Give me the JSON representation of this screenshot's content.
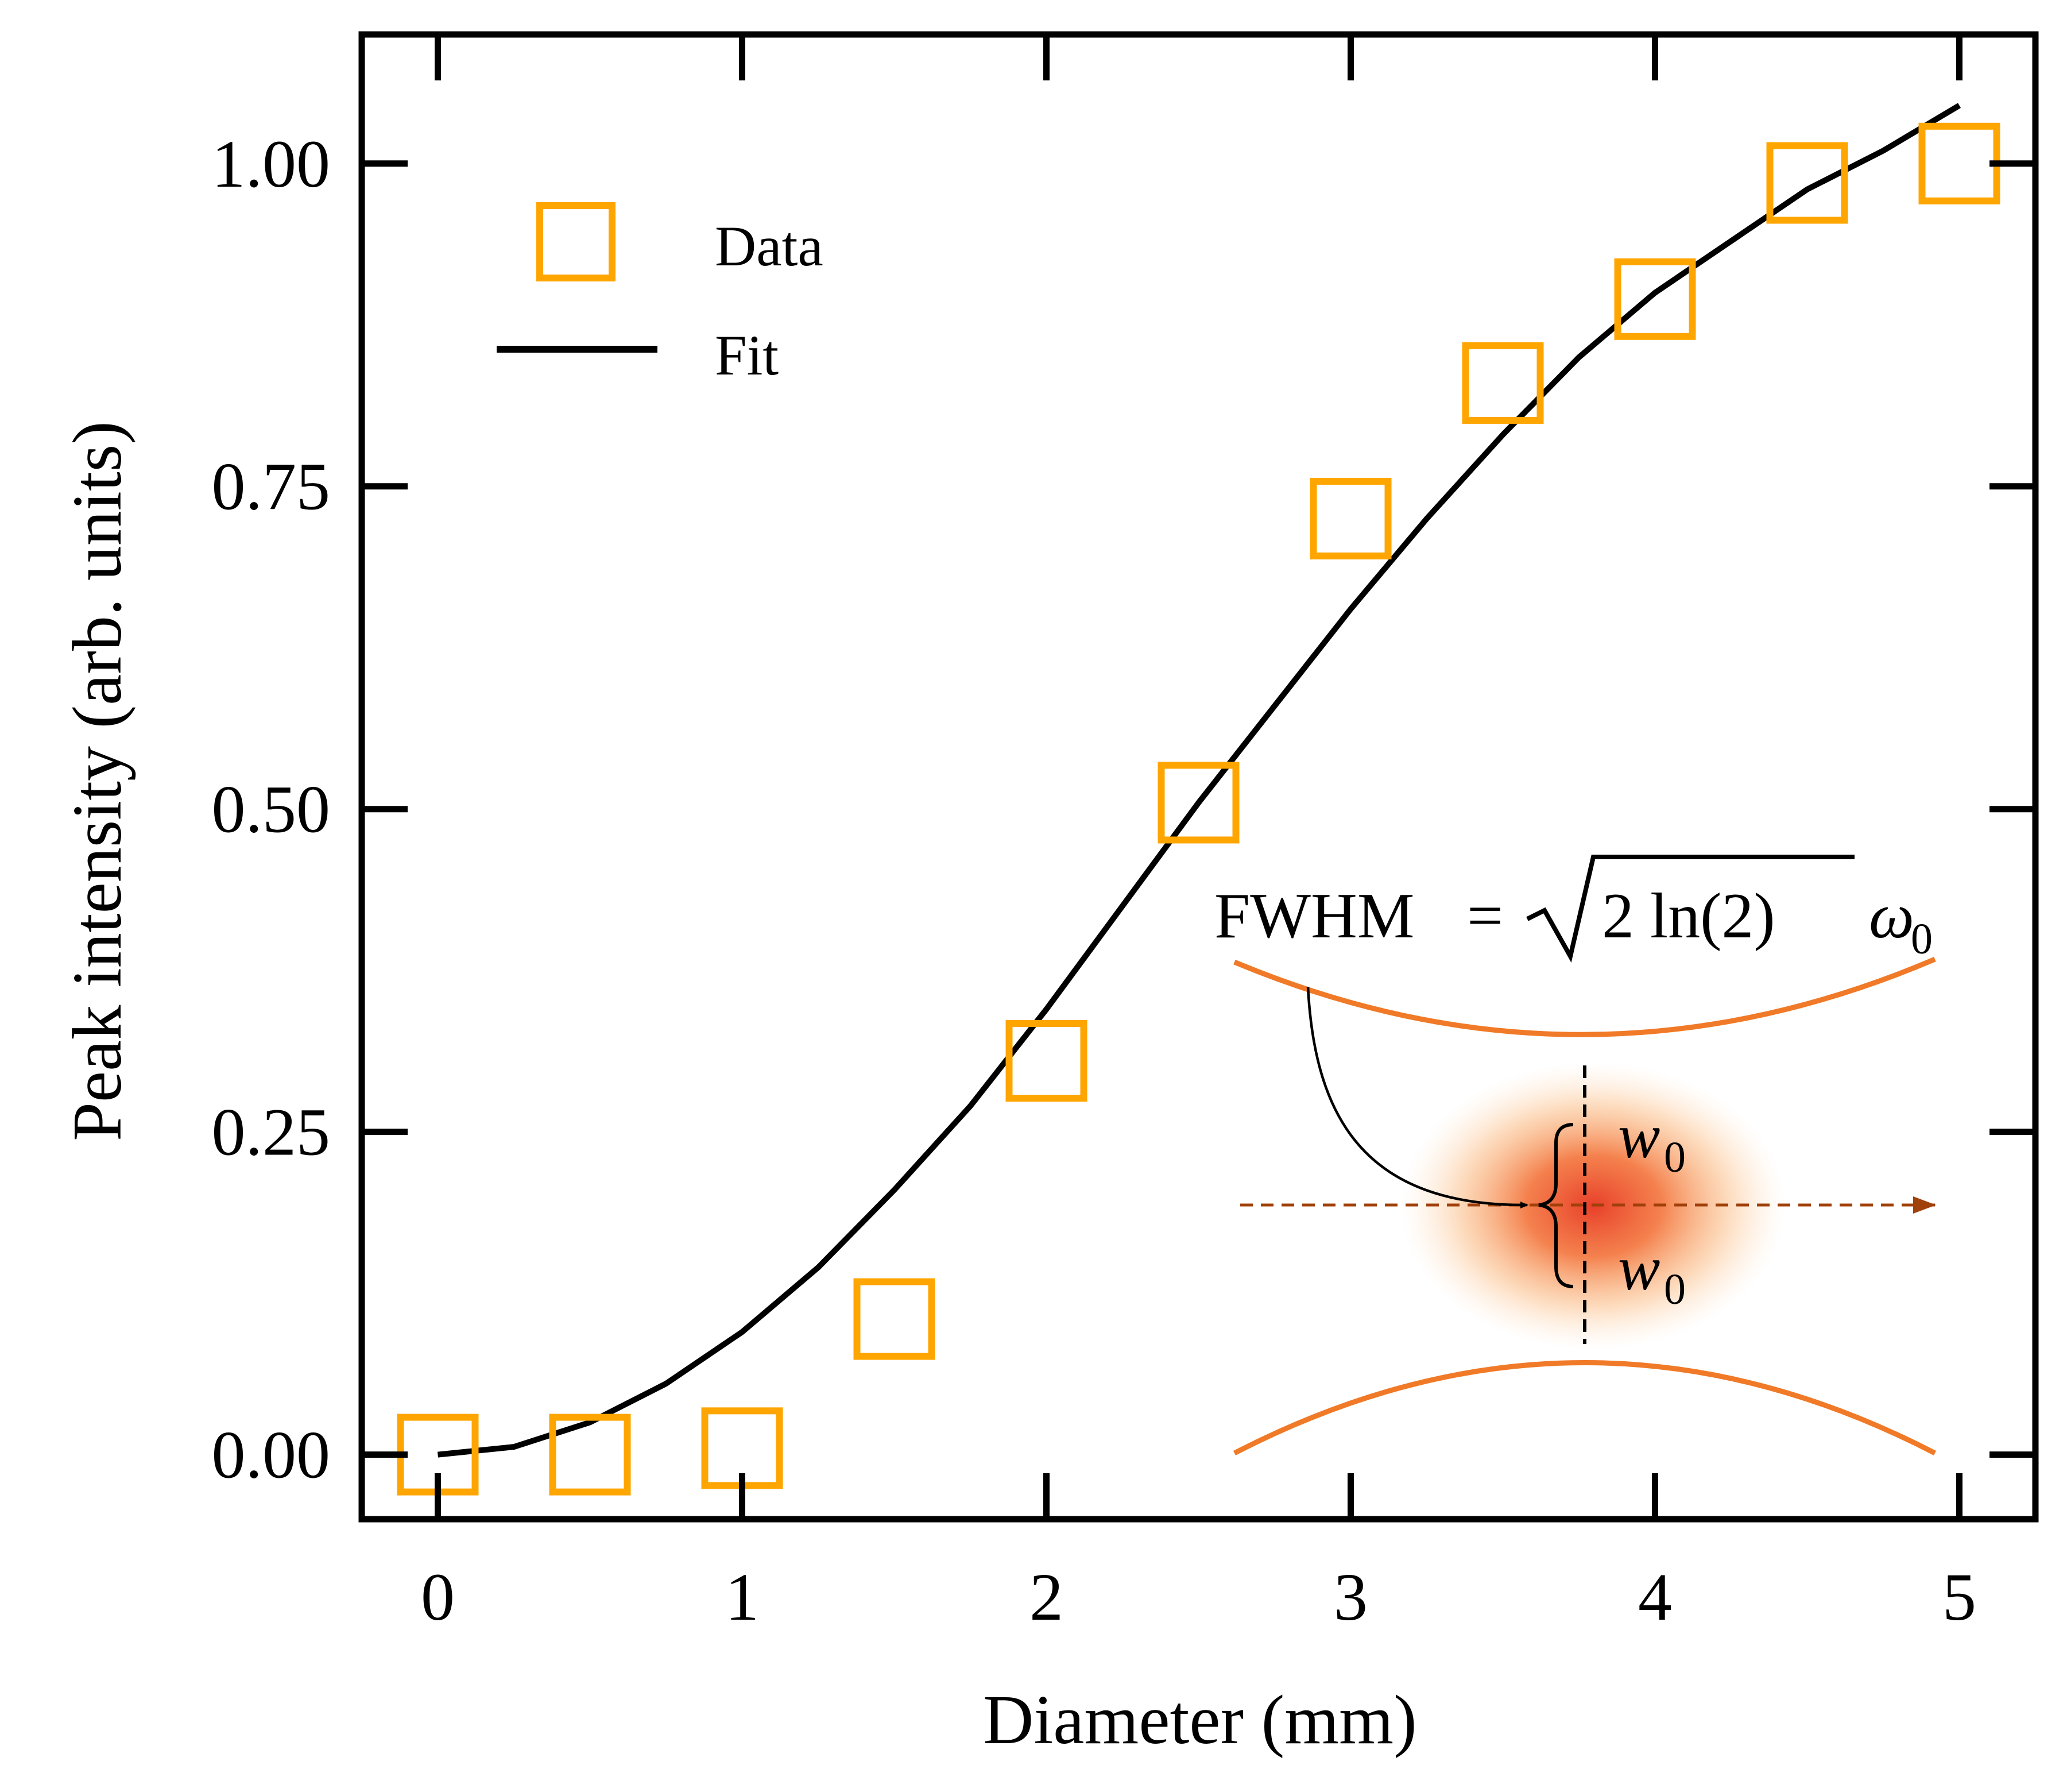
{
  "chart_data": {
    "type": "scatter",
    "title": "",
    "xlabel": "Diameter (mm)",
    "ylabel": "Peak intensity (arb. units)",
    "xlim": [
      -0.25,
      5.25
    ],
    "ylim": [
      -0.05,
      1.1
    ],
    "grid": false,
    "x_ticks": [
      0,
      1,
      2,
      3,
      4,
      5
    ],
    "x_tick_labels": [
      "0",
      "1",
      "2",
      "3",
      "4",
      "5"
    ],
    "y_ticks": [
      0,
      0.25,
      0.5,
      0.75,
      1.0
    ],
    "y_tick_labels": [
      "0.00",
      "0.25",
      "0.50",
      "0.75",
      "1.00"
    ],
    "legend": {
      "position": "upper-left",
      "entries": [
        {
          "label": "Data",
          "marker": "square-open",
          "color": "#FFA500"
        },
        {
          "label": "Fit",
          "marker": "line",
          "color": "#000000"
        }
      ]
    },
    "series": [
      {
        "name": "Data",
        "style": "markers",
        "marker": "square-open",
        "color": "#FFA500",
        "x": [
          0,
          0.5,
          1.0,
          1.5,
          2.0,
          2.5,
          3.0,
          3.5,
          4.0,
          4.5,
          5.0
        ],
        "y": [
          0.0,
          0.0,
          0.005,
          0.105,
          0.305,
          0.505,
          0.725,
          0.83,
          0.895,
          0.985,
          1.0
        ]
      },
      {
        "name": "Fit",
        "style": "line",
        "color": "#000000",
        "x": [
          0,
          0.25,
          0.5,
          0.75,
          1.0,
          1.25,
          1.5,
          1.75,
          2.0,
          2.25,
          2.5,
          2.75,
          3.0,
          3.25,
          3.5,
          3.75,
          4.0,
          4.25,
          4.5,
          4.75,
          5.0
        ],
        "y": [
          0.0,
          0.006,
          0.025,
          0.055,
          0.095,
          0.145,
          0.205,
          0.27,
          0.345,
          0.425,
          0.505,
          0.58,
          0.655,
          0.725,
          0.79,
          0.85,
          0.9,
          0.94,
          0.98,
          1.01,
          1.045
        ]
      }
    ],
    "inset": {
      "equation": {
        "lhs": "FWHM",
        "equals": "=",
        "radical": "2 ln(2)",
        "symbol": "ω",
        "subscript": "0"
      },
      "upper_label": {
        "symbol": "w",
        "subscript": "0"
      },
      "lower_label": {
        "symbol": "w",
        "subscript": "0"
      },
      "beam_edge_color": "#F07A28",
      "axis_arrow_color": "#A0400A",
      "spot_color": "#E8402A"
    }
  }
}
